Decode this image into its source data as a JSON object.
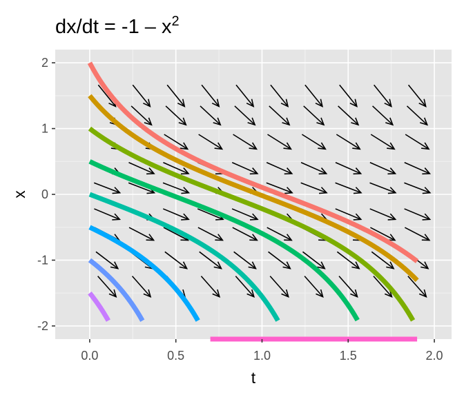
{
  "chart_data": {
    "type": "line",
    "title": "dx/dt = -1 – x",
    "title_superscript": "2",
    "xlabel": "t",
    "ylabel": "x",
    "xlim": [
      -0.2,
      2.1
    ],
    "ylim": [
      -2.2,
      2.2
    ],
    "x_ticks": [
      0.0,
      0.5,
      1.0,
      1.5,
      2.0
    ],
    "x_tick_labels": [
      "0.0",
      "0.5",
      "1.0",
      "1.5",
      "2.0"
    ],
    "y_ticks": [
      2,
      1,
      0,
      -1,
      -2
    ],
    "y_tick_labels": [
      "2",
      "1",
      "0",
      "-1",
      "-2"
    ],
    "grid": true,
    "panel_background": "#e5e5e5",
    "grid_color": "#ffffff",
    "legend": "none",
    "direction_field": {
      "t_values": [
        0.1,
        0.3,
        0.5,
        0.7,
        0.9,
        1.1,
        1.3,
        1.5,
        1.7,
        1.9
      ],
      "x_values": [
        1.5,
        1.2,
        0.8,
        0.4,
        0.1,
        -0.3,
        -0.6,
        -1.0,
        -1.4
      ],
      "arrow_color": "#000000"
    },
    "series": [
      {
        "x0": 2.0,
        "color": "#F8766D"
      },
      {
        "x0": 1.5,
        "color": "#CD9600"
      },
      {
        "x0": 1.0,
        "color": "#7CAE00"
      },
      {
        "x0": 0.5,
        "color": "#00BE67"
      },
      {
        "x0": 0.0,
        "color": "#00BFA4"
      },
      {
        "x0": -0.5,
        "color": "#00A9FF"
      },
      {
        "x0": -1.0,
        "color": "#6797FF"
      },
      {
        "x0": -1.5,
        "color": "#C77CFF"
      },
      {
        "x0": -2.2,
        "color": "#FF61CC",
        "t_start": 0.7,
        "t_end": 1.9
      }
    ]
  }
}
